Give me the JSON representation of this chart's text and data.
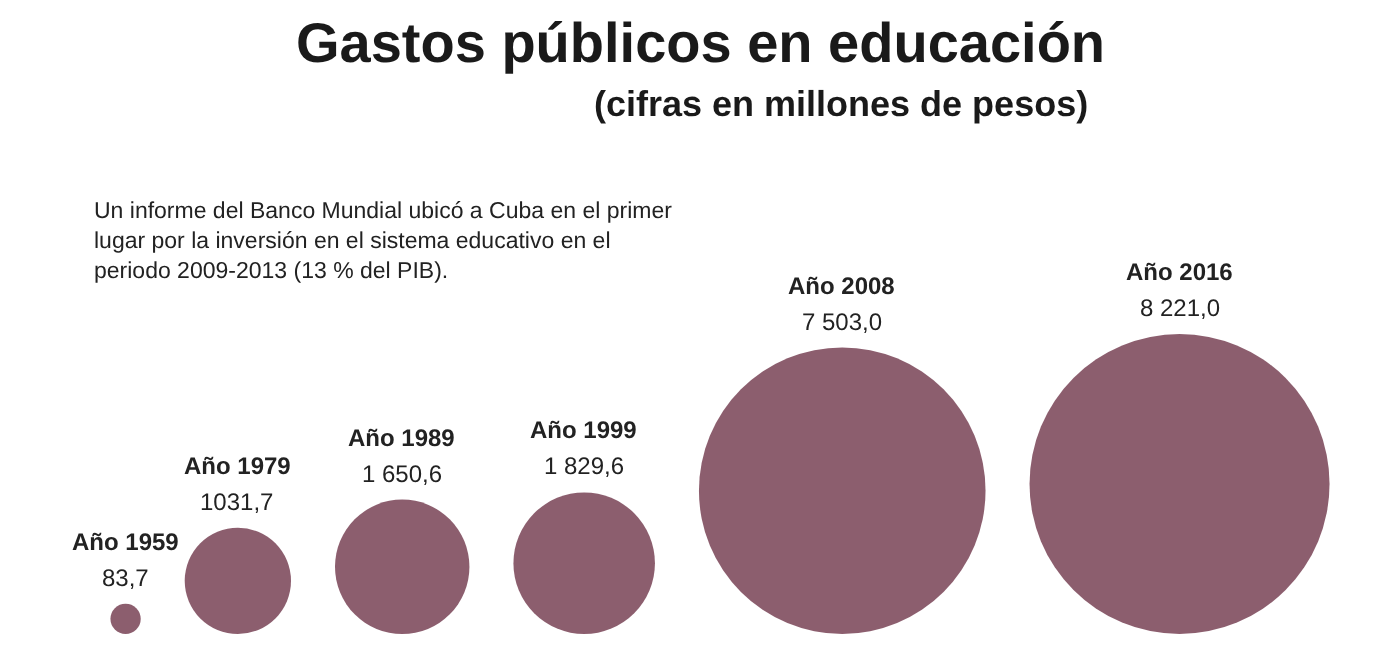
{
  "chart_data": {
    "type": "other",
    "title": "Gastos públicos en educación",
    "subtitle": "(cifras en millones de pesos)",
    "annotations": [
      "Un informe del Banco Mundial ubicó a Cuba en el primer lugar por la inversión en el sistema educativo en el periodo 2009-2013 (13 % del PIB)."
    ],
    "categories": [
      "Año 1959",
      "Año 1979",
      "Año 1989",
      "Año 1999",
      "Año 2008",
      "Año 2016"
    ],
    "values": [
      83.7,
      1031.7,
      1650.6,
      1829.6,
      7503.0,
      8221.0
    ],
    "value_labels": [
      "83,7",
      "1031,7",
      "1 650,6",
      "1 829,6",
      "7 503,0",
      "8 221,0"
    ],
    "color": "#5b1a30"
  }
}
